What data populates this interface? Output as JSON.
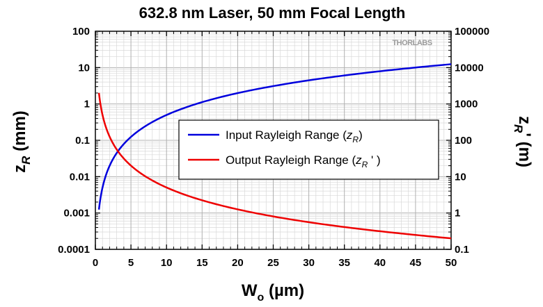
{
  "chart_data": {
    "type": "line",
    "title": "632.8 nm Laser, 50 mm Focal Length",
    "xlabel": "W",
    "xlabel_sub": "o",
    "xlabel_unit": " (µm)",
    "ylabel_main": "z",
    "ylabel_sub": "R",
    "ylabel_unit": " (mm)",
    "y2label_main": "z",
    "y2label_sub": "R",
    "y2label_prime": "'",
    "y2label_unit": " (m)",
    "xlim": [
      0,
      50
    ],
    "ylim": [
      0.0001,
      100
    ],
    "y2lim": [
      0.1,
      100000
    ],
    "yscale": "log",
    "x_ticks": [
      "0",
      "5",
      "10",
      "15",
      "20",
      "25",
      "30",
      "35",
      "40",
      "45",
      "50"
    ],
    "y_ticks": [
      "0.0001",
      "0.001",
      "0.01",
      "0.1",
      "1",
      "10",
      "100"
    ],
    "y2_ticks": [
      "0.1",
      "1",
      "10",
      "100",
      "1000",
      "10000",
      "100000"
    ],
    "grid": true,
    "legend_position": "center-right",
    "wavelength_nm": 632.8,
    "focal_length_mm": 50,
    "series": [
      {
        "name": "Input Rayleigh Range",
        "legend_main": "Input Rayleigh Range (",
        "legend_sym": "z",
        "legend_sub": "R",
        "legend_end": ")",
        "axis": "left",
        "unit": "mm",
        "color": "#0000dd",
        "x": [
          0.5,
          1,
          2,
          3,
          5,
          7.5,
          10,
          15,
          20,
          25,
          30,
          35,
          40,
          45,
          50
        ],
        "y": [
          0.00124,
          0.00497,
          0.0199,
          0.0447,
          0.124,
          0.279,
          0.497,
          1.12,
          1.99,
          3.1,
          4.47,
          6.08,
          7.94,
          10.05,
          12.41
        ]
      },
      {
        "name": "Output Rayleigh Range",
        "legend_main": "Output Rayleigh Range (",
        "legend_sym": "z",
        "legend_sub": "R",
        "legend_prime": " '",
        "legend_end": " )",
        "axis": "right",
        "unit": "m",
        "color": "#ee0000",
        "x": [
          0.5,
          1,
          2,
          3,
          5,
          7.5,
          10,
          15,
          20,
          25,
          30,
          35,
          40,
          45,
          50
        ],
        "y": [
          2014,
          503,
          126,
          55.9,
          20.1,
          8.95,
          5.03,
          2.24,
          1.26,
          0.805,
          0.559,
          0.411,
          0.315,
          0.249,
          0.201
        ]
      }
    ]
  },
  "watermark": "THORLABS"
}
